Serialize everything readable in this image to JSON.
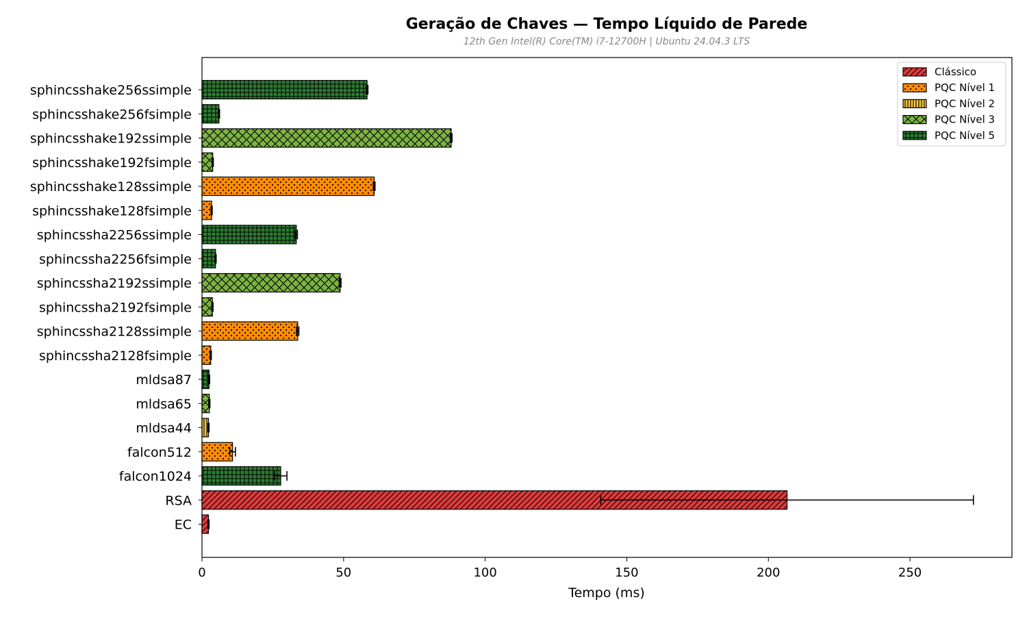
{
  "chart_data": {
    "type": "bar",
    "orientation": "horizontal",
    "title": "Geração de Chaves — Tempo Líquido de Parede",
    "subtitle": "12th Gen Intel(R) Core(TM) i7-12700H | Ubuntu 24.04.3 LTS",
    "xlabel": "Tempo (ms)",
    "ylabel": "",
    "xlim": [
      0,
      286
    ],
    "xticks": [
      0,
      50,
      100,
      150,
      200,
      250
    ],
    "grid": false,
    "legend_position": "top-right",
    "legend": [
      {
        "label": "Clássico",
        "color": "#e03a3a",
        "pattern": "hatch-diag"
      },
      {
        "label": "PQC Nível 1",
        "color": "#ff8c00",
        "pattern": "dots"
      },
      {
        "label": "PQC Nível 2",
        "color": "#f5c542",
        "pattern": "vlines"
      },
      {
        "label": "PQC Nível 3",
        "color": "#7cb342",
        "pattern": "cross"
      },
      {
        "label": "PQC Nível 5",
        "color": "#2e7d32",
        "pattern": "grid"
      }
    ],
    "bars": [
      {
        "label": "sphincsshake256ssimple",
        "value": 58.3,
        "error": 0.3,
        "group": 4
      },
      {
        "label": "sphincsshake256fsimple",
        "value": 6.0,
        "error": 0.2,
        "group": 4
      },
      {
        "label": "sphincsshake192ssimple",
        "value": 88.0,
        "error": 0.3,
        "group": 3
      },
      {
        "label": "sphincsshake192fsimple",
        "value": 3.8,
        "error": 0.2,
        "group": 3
      },
      {
        "label": "sphincsshake128ssimple",
        "value": 60.8,
        "error": 0.3,
        "group": 1
      },
      {
        "label": "sphincsshake128fsimple",
        "value": 3.4,
        "error": 0.2,
        "group": 1
      },
      {
        "label": "sphincssha2256ssimple",
        "value": 33.3,
        "error": 0.4,
        "group": 4
      },
      {
        "label": "sphincssha2256fsimple",
        "value": 4.8,
        "error": 0.2,
        "group": 4
      },
      {
        "label": "sphincssha2192ssimple",
        "value": 48.8,
        "error": 0.3,
        "group": 3
      },
      {
        "label": "sphincssha2192fsimple",
        "value": 3.7,
        "error": 0.2,
        "group": 3
      },
      {
        "label": "sphincssha2128ssimple",
        "value": 33.8,
        "error": 0.4,
        "group": 1
      },
      {
        "label": "sphincssha2128fsimple",
        "value": 3.1,
        "error": 0.2,
        "group": 1
      },
      {
        "label": "mldsa87",
        "value": 2.5,
        "error": 0.2,
        "group": 4
      },
      {
        "label": "mldsa65",
        "value": 2.6,
        "error": 0.2,
        "group": 3
      },
      {
        "label": "mldsa44",
        "value": 2.3,
        "error": 0.2,
        "group": 2
      },
      {
        "label": "falcon512",
        "value": 10.8,
        "error": 1.0,
        "group": 1
      },
      {
        "label": "falcon1024",
        "value": 27.8,
        "error": 2.2,
        "group": 4
      },
      {
        "label": "RSA",
        "value": 206.6,
        "error": 65.8,
        "group": 0
      },
      {
        "label": "EC",
        "value": 2.3,
        "error": 0.2,
        "group": 0
      }
    ]
  }
}
